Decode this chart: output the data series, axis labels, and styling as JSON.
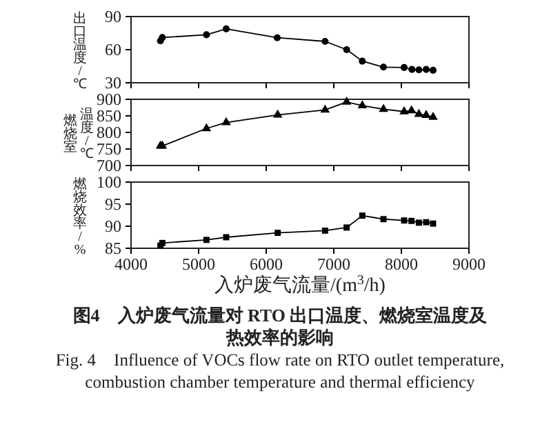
{
  "chart_data": [
    {
      "type": "line",
      "ylabel": "出口温度/℃",
      "marker": "circle",
      "line_style": "solid",
      "tick_labels": "y",
      "x": [
        4435,
        4463,
        5116,
        5408,
        6163,
        6871,
        7190,
        7422,
        7735,
        8041,
        8156,
        8259,
        8367,
        8469
      ],
      "series": [
        {
          "color": "#000000",
          "values": [
            68,
            71,
            73.5,
            78.8,
            70.8,
            67.5,
            60,
            49.6,
            44.2,
            43.8,
            42.1,
            41.7,
            42.1,
            41.3
          ]
        }
      ],
      "xlim": [
        4000,
        9000
      ],
      "xticks": [
        {
          "value": 4000,
          "label": null
        },
        {
          "value": 5000,
          "label": null
        },
        {
          "value": 6000,
          "label": null
        },
        {
          "value": 7000,
          "label": null
        },
        {
          "value": 8000,
          "label": null
        },
        {
          "value": 9000,
          "label": null
        }
      ],
      "ylim": [
        30,
        90
      ],
      "yticks": [
        30,
        60,
        90
      ]
    },
    {
      "type": "line",
      "ylabel": "燃烧室温度/℃",
      "marker": "triangle",
      "line_style": "solid",
      "tick_labels": "y",
      "x": [
        4435,
        4463,
        5116,
        5408,
        6170,
        6871,
        7190,
        7422,
        7735,
        8041,
        8150,
        8259,
        8367,
        8469
      ],
      "series": [
        {
          "color": "#000000",
          "values": [
            759,
            759,
            812,
            830,
            853,
            868,
            892,
            881,
            870,
            863,
            866,
            855,
            852,
            846
          ]
        }
      ],
      "xlim": [
        4000,
        9000
      ],
      "xticks": [
        {
          "value": 4000,
          "label": null
        },
        {
          "value": 5000,
          "label": null
        },
        {
          "value": 6000,
          "label": null
        },
        {
          "value": 7000,
          "label": null
        },
        {
          "value": 8000,
          "label": null
        },
        {
          "value": 9000,
          "label": null
        }
      ],
      "ylim": [
        700,
        900
      ],
      "yticks": [
        700,
        750,
        800,
        850,
        900
      ]
    },
    {
      "type": "line",
      "ylabel": "燃烧效率/%",
      "xlabel": "入炉废气流量/(m$^{3}$/h)",
      "marker": "square",
      "line_style": "solid",
      "x": [
        4435,
        4463,
        5116,
        5408,
        6170,
        6871,
        7190,
        7422,
        7735,
        8041,
        8150,
        8259,
        8367,
        8469
      ],
      "series": [
        {
          "color": "#000000",
          "values": [
            85.6,
            86.2,
            86.9,
            87.5,
            88.5,
            89.0,
            89.7,
            92.4,
            91.6,
            91.3,
            91.2,
            90.8,
            90.9,
            90.6
          ]
        }
      ],
      "xlim": [
        4000,
        9000
      ],
      "xticks": [
        4000,
        5000,
        6000,
        7000,
        8000,
        9000
      ],
      "ylim": [
        85,
        100
      ],
      "yticks": [
        85,
        90,
        95,
        100
      ],
      "annotations": [
        "图4　入炉废气流量对 RTO 出口温度、燃烧室温度及热效率的影响",
        "Fig. 4　Influence of VOCs flow rate on RTO outlet temperature, combustion chamber temperature and thermal efficiency"
      ]
    }
  ]
}
